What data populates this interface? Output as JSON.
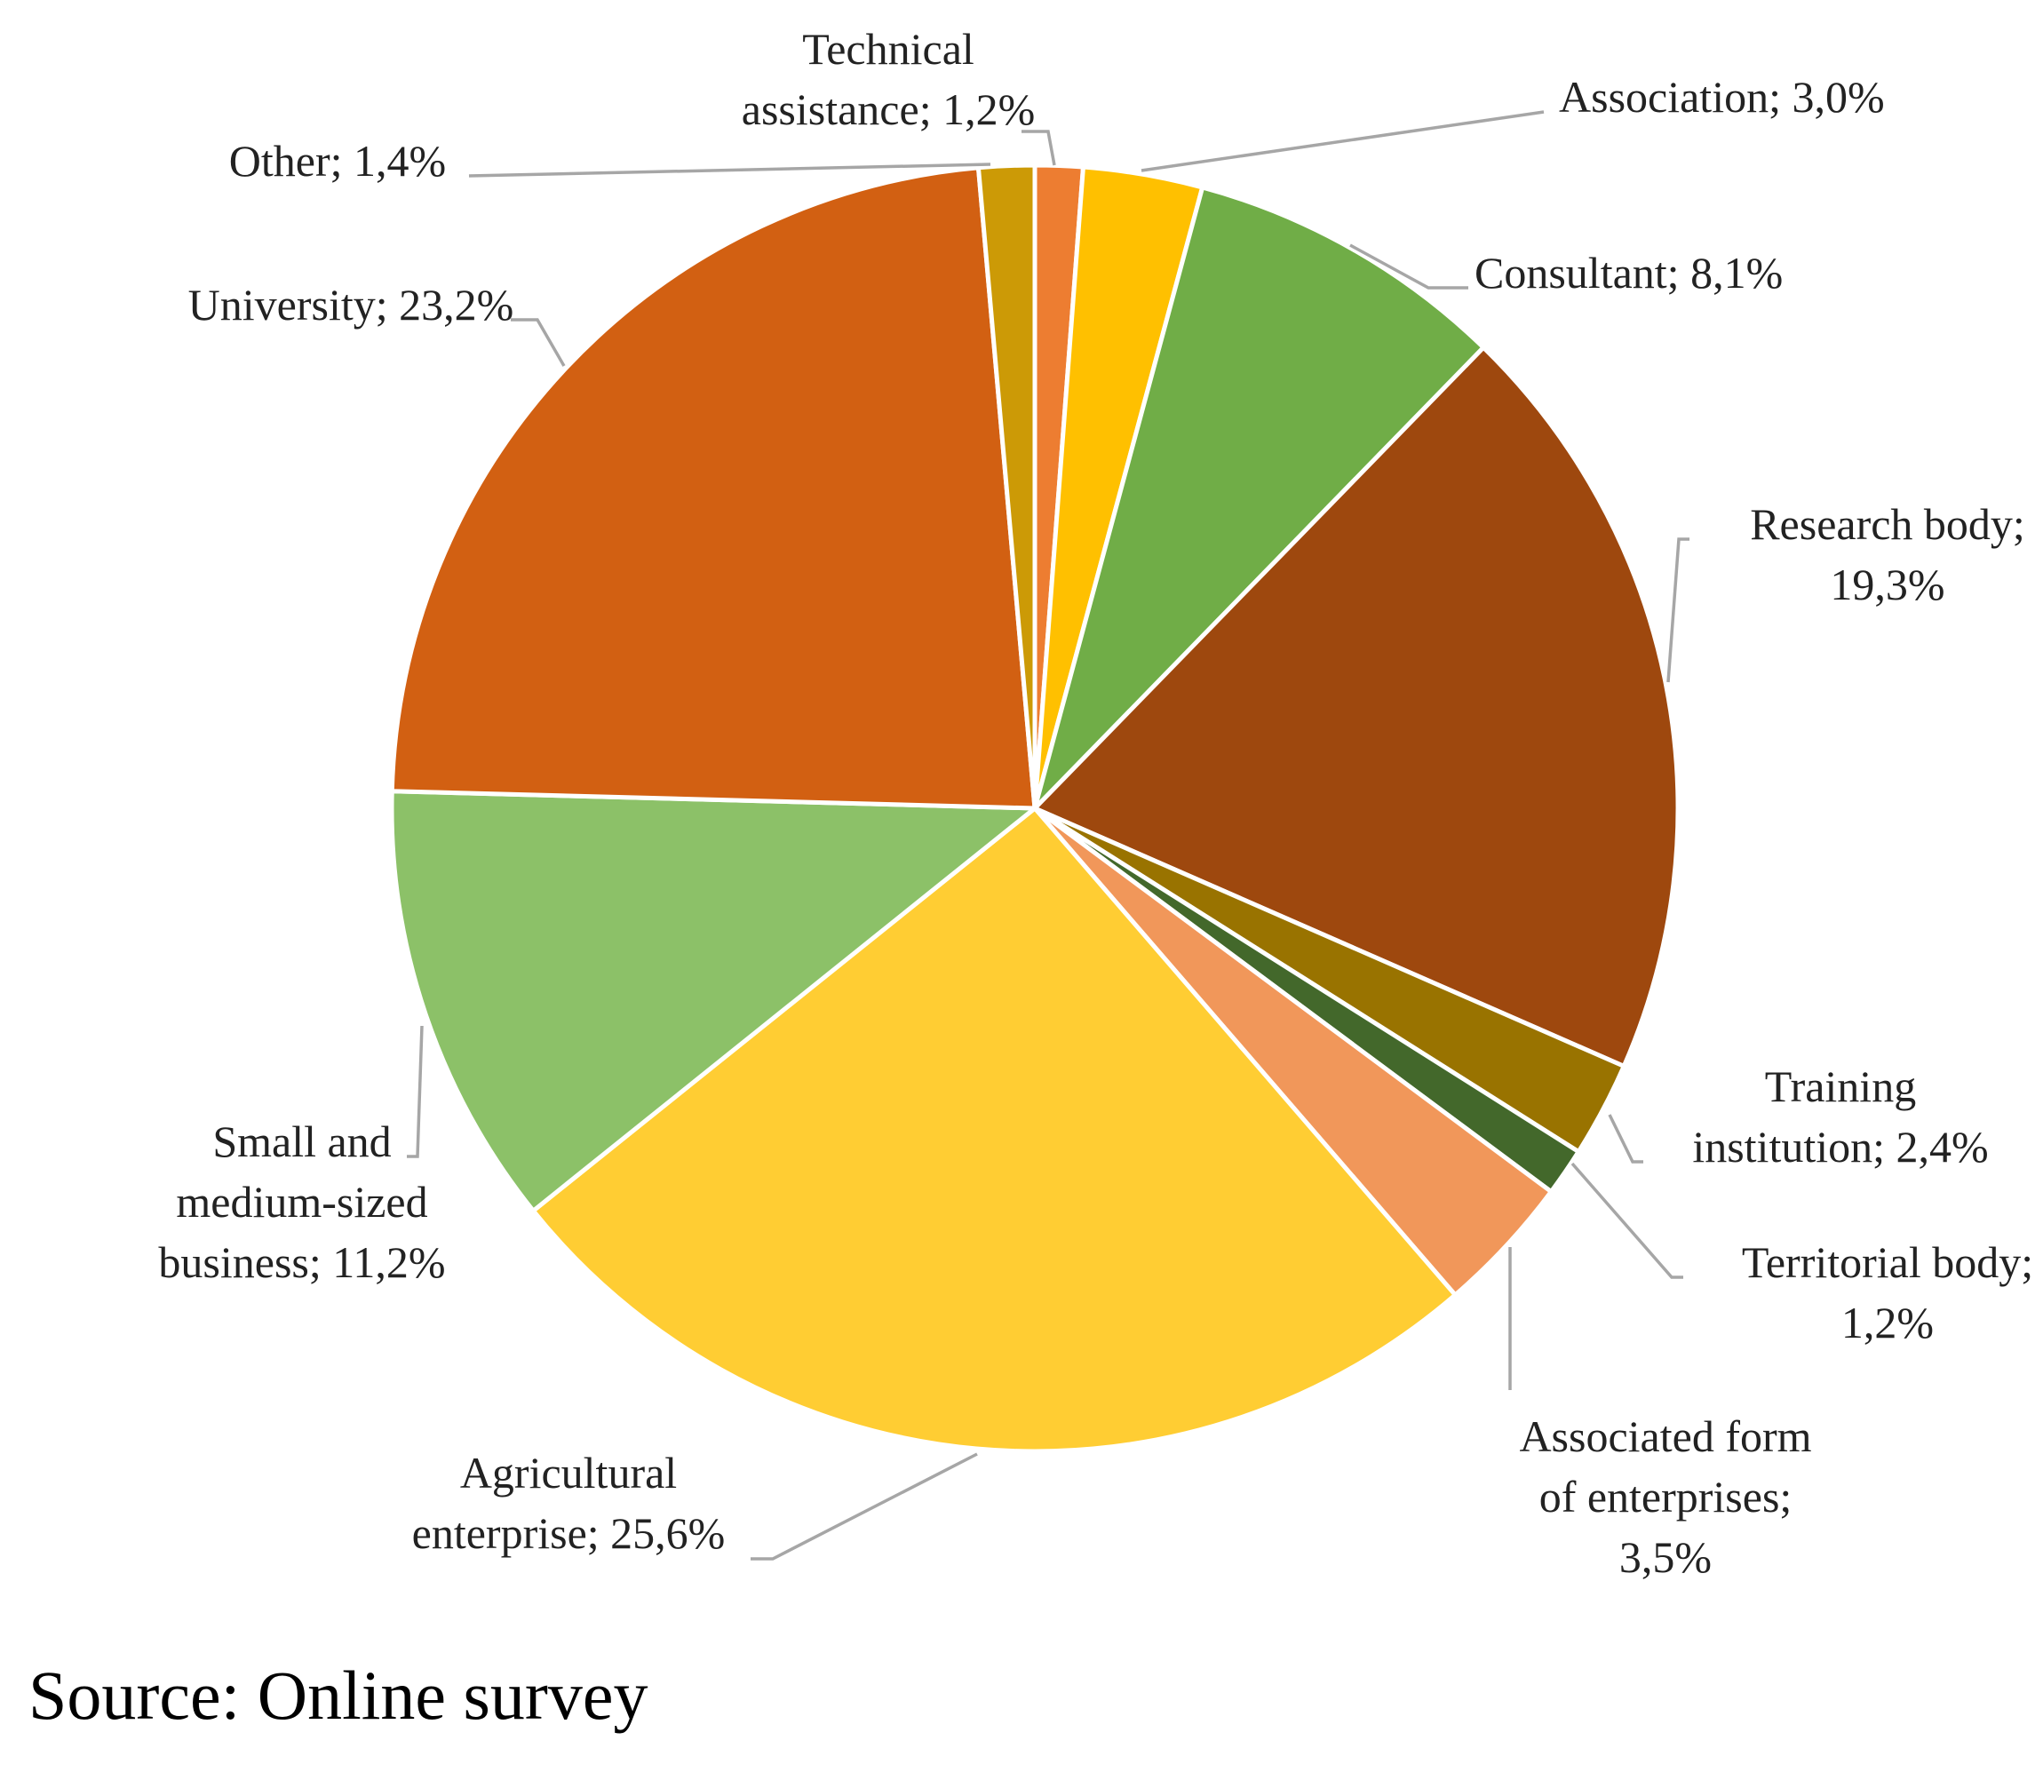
{
  "chart_data": {
    "type": "pie",
    "title": "",
    "start_angle_deg": 0,
    "direction": "clockwise",
    "slices": [
      {
        "label": "Technical assistance",
        "value": 1.2,
        "display": "1,2%",
        "color": "#ED7D31",
        "text": [
          "Technical",
          "assistance; 1,2%"
        ]
      },
      {
        "label": "Association",
        "value": 3.0,
        "display": "3,0%",
        "color": "#FFC000",
        "text": [
          "Association; 3,0%"
        ]
      },
      {
        "label": "Consultant",
        "value": 8.1,
        "display": "8,1%",
        "color": "#70AD47",
        "text": [
          "Consultant; 8,1%"
        ]
      },
      {
        "label": "Research body",
        "value": 19.3,
        "display": "19,3%",
        "color": "#9E480E",
        "text": [
          "Research body;",
          "19,3%"
        ]
      },
      {
        "label": "Training institution",
        "value": 2.4,
        "display": "2,4%",
        "color": "#997300",
        "text": [
          "Training",
          "institution; 2,4%"
        ]
      },
      {
        "label": "Territorial body",
        "value": 1.2,
        "display": "1,2%",
        "color": "#43682B",
        "text": [
          "Territorial body;",
          "1,2%"
        ]
      },
      {
        "label": "Associated form of enterprises",
        "value": 3.5,
        "display": "3,5%",
        "color": "#F1975A",
        "text": [
          "Associated form",
          "of enterprises;",
          "3,5%"
        ]
      },
      {
        "label": "Agricultural enterprise",
        "value": 25.6,
        "display": "25,6%",
        "color": "#FFCD33",
        "text": [
          "Agricultural",
          "enterprise; 25,6%"
        ]
      },
      {
        "label": "Small and medium-sized business",
        "value": 11.2,
        "display": "11,2%",
        "color": "#8CC168",
        "text": [
          "Small and",
          "medium-sized",
          "business; 11,2%"
        ]
      },
      {
        "label": "University",
        "value": 23.2,
        "display": "23,2%",
        "color": "#D26012",
        "text": [
          "University; 23,2%"
        ]
      },
      {
        "label": "Other",
        "value": 1.4,
        "display": "1,4%",
        "color": "#CC9A06",
        "text": [
          "Other; 1,4%"
        ]
      }
    ]
  },
  "source": "Source: Online survey"
}
